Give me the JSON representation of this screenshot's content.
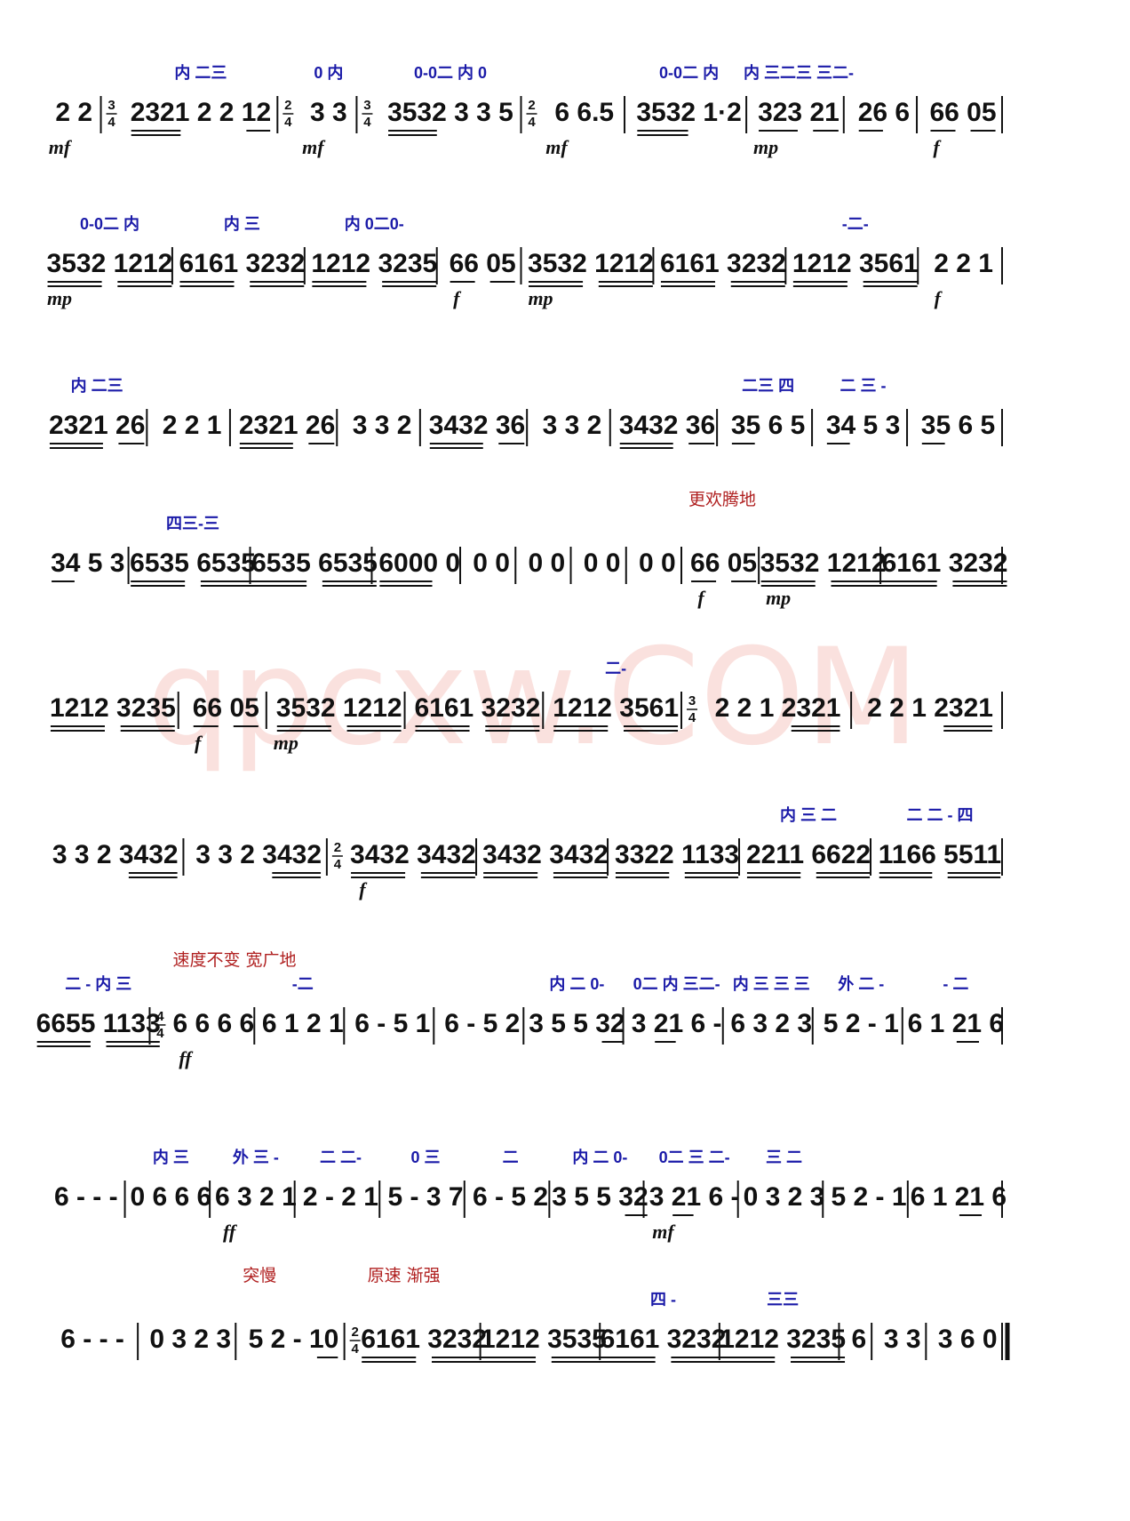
{
  "watermark": "qpcxw.COM",
  "rows": [
    {
      "measures": [
        {
          "notes": "2 2",
          "dynamic": "mf"
        },
        {
          "time": {
            "top": "3",
            "bottom": "4"
          },
          "notes": "2321 2 2 12",
          "fingering": "内 二三"
        },
        {
          "time": {
            "top": "2",
            "bottom": "4"
          },
          "notes": "3 3",
          "dynamic": "mf",
          "fingering": "0 内"
        },
        {
          "time": {
            "top": "3",
            "bottom": "4"
          },
          "notes": "3532 3 3 5",
          "fingering": "0-0二 内 0"
        },
        {
          "time": {
            "top": "2",
            "bottom": "4"
          },
          "notes": "6 6.5",
          "dynamic": "mf"
        },
        {
          "notes": "3532 1·2",
          "fingering": "0-0二 内"
        },
        {
          "notes": "323 21",
          "dynamic": "mp",
          "fingering": "内 三二三 三二-"
        },
        {
          "notes": "26 6"
        },
        {
          "notes": "66 05",
          "dynamic": "f"
        }
      ]
    },
    {
      "measures": [
        {
          "notes": "3532 1212",
          "dynamic": "mp",
          "fingering": "0-0二 内"
        },
        {
          "notes": "6161 3232",
          "fingering": "内 三"
        },
        {
          "notes": "1212 3235",
          "fingering": "内 0二0-"
        },
        {
          "notes": "66 05",
          "dynamic": "f"
        },
        {
          "notes": "3532 1212",
          "dynamic": "mp"
        },
        {
          "notes": "6161 3232"
        },
        {
          "notes": "1212 3561",
          "fingering": "-二-"
        },
        {
          "notes": "2 2 1",
          "dynamic": "f"
        }
      ]
    },
    {
      "measures": [
        {
          "notes": "2321 26",
          "fingering": "内 二三"
        },
        {
          "notes": "2 2 1"
        },
        {
          "notes": "2321 26"
        },
        {
          "notes": "3 3 2"
        },
        {
          "notes": "3432 36"
        },
        {
          "notes": "3 3 2"
        },
        {
          "notes": "3432 36"
        },
        {
          "notes": "35 6 5",
          "fingering": "二三 四"
        },
        {
          "notes": "34 5 3",
          "fingering": "二 三 -"
        },
        {
          "notes": "35 6 5"
        }
      ]
    },
    {
      "measures": [
        {
          "notes": "34 5 3"
        },
        {
          "notes": "6535 6535",
          "fingering": "四三-三"
        },
        {
          "notes": "6535 6535"
        },
        {
          "notes": "6000 0"
        },
        {
          "notes": "0 0"
        },
        {
          "notes": "0 0"
        },
        {
          "notes": "0 0"
        },
        {
          "notes": "0 0"
        },
        {
          "notes": "66 05",
          "dynamic": "f",
          "annotation": "更欢腾地"
        },
        {
          "notes": "3532 1212",
          "dynamic": "mp"
        },
        {
          "notes": "6161 3232"
        }
      ]
    },
    {
      "measures": [
        {
          "notes": "1212 3235"
        },
        {
          "notes": "66 05",
          "dynamic": "f"
        },
        {
          "notes": "3532 1212",
          "dynamic": "mp"
        },
        {
          "notes": "6161 3232"
        },
        {
          "notes": "1212 3561",
          "fingering": "二-"
        },
        {
          "time": {
            "top": "3",
            "bottom": "4"
          },
          "notes": "2 2 1 2321"
        },
        {
          "notes": "2 2 1 2321"
        }
      ]
    },
    {
      "measures": [
        {
          "notes": "3 3 2 3432"
        },
        {
          "notes": "3 3 2 3432"
        },
        {
          "time": {
            "top": "2",
            "bottom": "4"
          },
          "notes": "3432 3432",
          "dynamic": "f"
        },
        {
          "notes": "3432 3432"
        },
        {
          "notes": "3322 1133"
        },
        {
          "notes": "2211 6622",
          "fingering": "内 三 二"
        },
        {
          "notes": "1166 5511",
          "fingering": "二 二 - 四"
        }
      ]
    },
    {
      "measures": [
        {
          "notes": "6655 1133",
          "fingering": "二 - 内 三"
        },
        {
          "time": {
            "top": "4",
            "bottom": "4"
          },
          "notes": "6 6 6 6",
          "dynamic": "ff",
          "annotation": "速度不变 宽广地"
        },
        {
          "notes": "6 1 2 1",
          "fingering": "-二"
        },
        {
          "notes": "6 - 5 1"
        },
        {
          "notes": "6 - 5 2"
        },
        {
          "notes": "3 5 5 32",
          "fingering": "内 二 0-"
        },
        {
          "notes": "3 21 6 -",
          "fingering": "0二 内 三二-"
        },
        {
          "notes": "6 3 2 3",
          "fingering": "内 三 三 三"
        },
        {
          "notes": "5 2 - 1",
          "fingering": "外 二 -"
        },
        {
          "notes": "6 1 21 6",
          "fingering": "- 二"
        }
      ]
    },
    {
      "measures": [
        {
          "notes": "6 - - -"
        },
        {
          "notes": "0 6 6 6",
          "fingering": "内 三"
        },
        {
          "notes": "6 3 2 1",
          "dynamic": "ff",
          "fingering": "外 三 -"
        },
        {
          "notes": "2 - 2 1",
          "fingering": "二 二-"
        },
        {
          "notes": "5 - 3 7",
          "fingering": "0 三"
        },
        {
          "notes": "6 - 5 2",
          "fingering": "二"
        },
        {
          "notes": "3 5 5 32",
          "fingering": "内 二 0-"
        },
        {
          "notes": "3 21 6 -",
          "dynamic": "mf",
          "fingering": "0二 三 二-"
        },
        {
          "notes": "0 3 2 3",
          "fingering": "三 二"
        },
        {
          "notes": "5 2 - 1"
        },
        {
          "notes": "6 1 21 6"
        }
      ]
    },
    {
      "measures": [
        {
          "notes": "6 - - -"
        },
        {
          "notes": "0 3 2 3"
        },
        {
          "notes": "5 2 - 10",
          "annotation": "突慢"
        },
        {
          "time": {
            "top": "2",
            "bottom": "4"
          },
          "notes": "6161 3232",
          "annotation": "原速 渐强"
        },
        {
          "notes": "1212 3535"
        },
        {
          "notes": "6161 3232",
          "fingering": "四 -"
        },
        {
          "notes": "1212 3235",
          "fingering": "三三"
        },
        {
          "notes": "6"
        },
        {
          "notes": "3 3"
        },
        {
          "notes": "3 6 0"
        }
      ]
    }
  ]
}
